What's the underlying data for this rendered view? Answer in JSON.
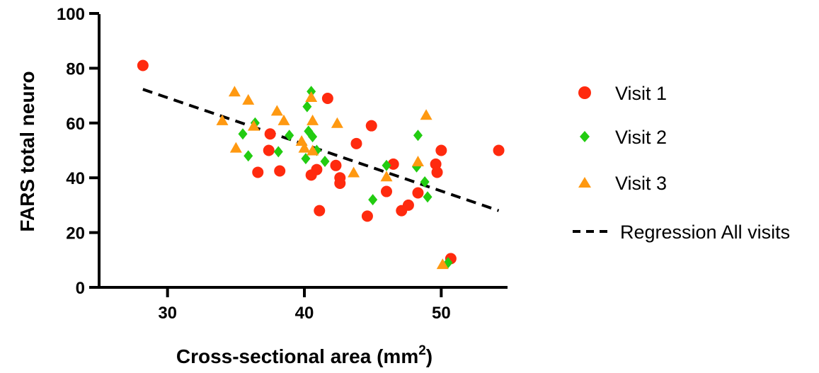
{
  "chart_data": {
    "type": "scatter",
    "xlabel": "Cross-sectional area (mm",
    "xlabel_sup": "2",
    "xlabel_end": ")",
    "ylabel": "FARS total neuro",
    "xlim": [
      25,
      55
    ],
    "ylim": [
      0,
      100
    ],
    "x_ticks": [
      30,
      40,
      50
    ],
    "y_ticks": [
      0,
      20,
      40,
      60,
      80,
      100
    ],
    "x_tick_labels": [
      "30",
      "40",
      "50"
    ],
    "y_tick_labels": [
      "0",
      "20",
      "40",
      "60",
      "80",
      "100"
    ],
    "grid": false,
    "legend_position": "right",
    "series": [
      {
        "name": "Visit 1",
        "marker": "circle",
        "color": "#ff2a0e",
        "points": [
          [
            28.2,
            81
          ],
          [
            36.6,
            42
          ],
          [
            37.4,
            50
          ],
          [
            37.5,
            56
          ],
          [
            38.2,
            42.5
          ],
          [
            40.5,
            41
          ],
          [
            40.9,
            43
          ],
          [
            41.1,
            28
          ],
          [
            41.7,
            69
          ],
          [
            42.3,
            44.5
          ],
          [
            42.6,
            40
          ],
          [
            42.6,
            38
          ],
          [
            43.8,
            52.5
          ],
          [
            44.6,
            26
          ],
          [
            44.9,
            59
          ],
          [
            46,
            35
          ],
          [
            46.5,
            45
          ],
          [
            47.1,
            28
          ],
          [
            47.6,
            30
          ],
          [
            48.3,
            34.5
          ],
          [
            49.6,
            45
          ],
          [
            49.7,
            42
          ],
          [
            50.0,
            50
          ],
          [
            50.7,
            10.5
          ],
          [
            54.2,
            50
          ]
        ]
      },
      {
        "name": "Visit 2",
        "marker": "diamond",
        "color": "#22cc11",
        "points": [
          [
            35.5,
            56
          ],
          [
            35.9,
            48
          ],
          [
            36.4,
            60
          ],
          [
            38.1,
            49.5
          ],
          [
            38.9,
            55.5
          ],
          [
            40.1,
            47
          ],
          [
            40.2,
            66
          ],
          [
            40.3,
            57
          ],
          [
            40.5,
            71.5
          ],
          [
            40.6,
            55
          ],
          [
            40.9,
            50
          ],
          [
            41.5,
            46
          ],
          [
            45.0,
            32
          ],
          [
            46.0,
            44.5
          ],
          [
            48.2,
            44
          ],
          [
            48.3,
            55.5
          ],
          [
            48.8,
            38.5
          ],
          [
            49.0,
            33
          ],
          [
            50.5,
            9
          ]
        ]
      },
      {
        "name": "Visit 3",
        "marker": "triangle",
        "color": "#ff9911",
        "points": [
          [
            34.0,
            61
          ],
          [
            34.9,
            71.5
          ],
          [
            35.0,
            51
          ],
          [
            35.9,
            68.5
          ],
          [
            36.3,
            59
          ],
          [
            38.0,
            64.5
          ],
          [
            38.5,
            61
          ],
          [
            39.8,
            53.5
          ],
          [
            40.0,
            51
          ],
          [
            40.5,
            69.5
          ],
          [
            40.6,
            61
          ],
          [
            40.6,
            50
          ],
          [
            42.4,
            60
          ],
          [
            43.6,
            42
          ],
          [
            46.0,
            40.5
          ],
          [
            48.3,
            46
          ],
          [
            48.9,
            63
          ],
          [
            50.1,
            8.5
          ]
        ]
      }
    ],
    "regression": {
      "name": "Regression All visits",
      "style": "dashed",
      "color": "#000000",
      "x": [
        28.2,
        54.2
      ],
      "y": [
        72.3,
        28
      ]
    }
  }
}
